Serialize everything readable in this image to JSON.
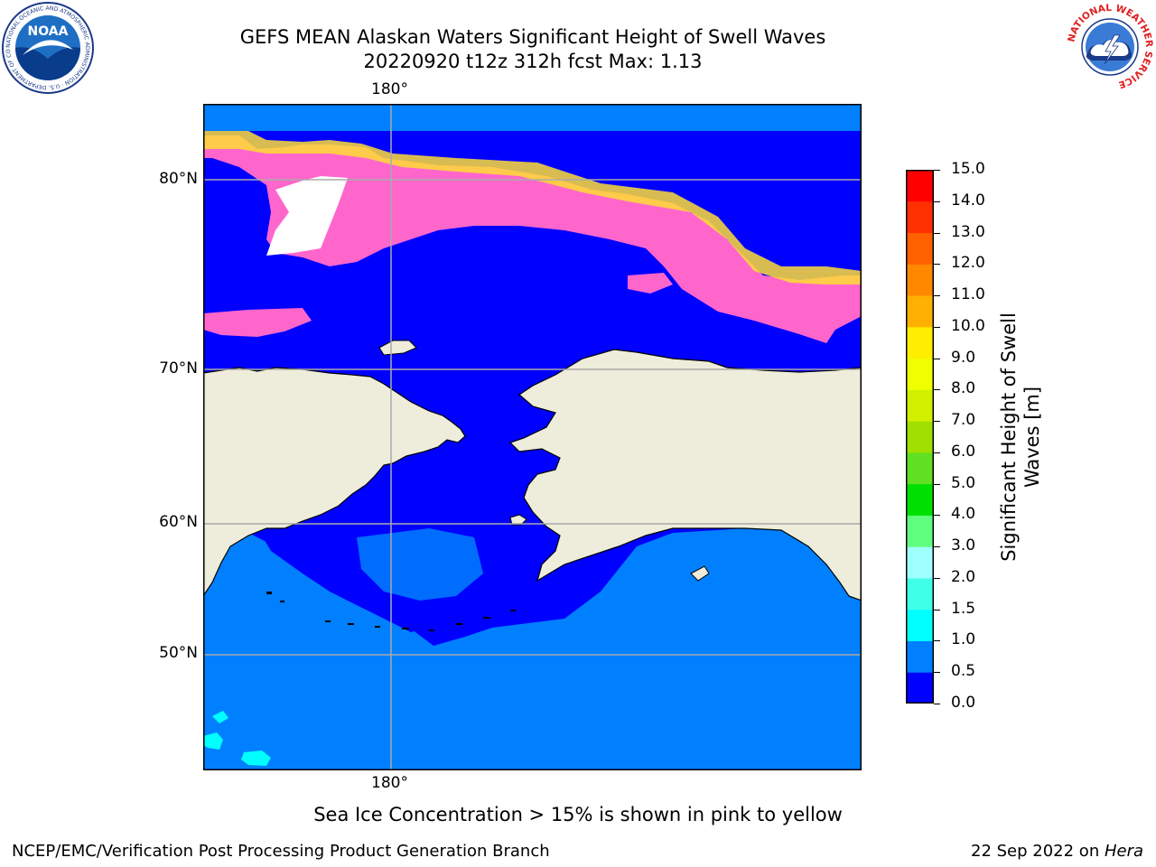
{
  "title": {
    "line1": "GEFS MEAN Alaskan Waters Significant Height of Swell Waves",
    "line2": "20220920 t12z 312h fcst   Max: 1.13"
  },
  "map": {
    "lon_label_top": "180°",
    "lon_label_bottom": "180°",
    "lat_labels": [
      "80°N",
      "70°N",
      "60°N",
      "50°N"
    ],
    "colors": {
      "land": "#eeeddc",
      "swell_0_05": "#0000ff",
      "swell_05_10": "#0080ff",
      "swell_10_15": "#00ffff",
      "ice": "#ff55cc",
      "ice_high": "#ffdd33"
    }
  },
  "colorbar": {
    "label": "Significant Height of Swell Waves [m]",
    "label_line1": "Significant Height of Swell",
    "label_line2": "Waves [m]",
    "ticks": [
      "0.0",
      "0.5",
      "1.0",
      "1.5",
      "2.0",
      "3.0",
      "4.0",
      "5.0",
      "6.0",
      "7.0",
      "8.0",
      "9.0",
      "10.0",
      "11.0",
      "12.0",
      "13.0",
      "14.0",
      "15.0"
    ],
    "colors": [
      "#0000ff",
      "#0080ff",
      "#00ffff",
      "#40ffe8",
      "#a0ffff",
      "#60ff80",
      "#00e000",
      "#60e020",
      "#a0e000",
      "#d0f000",
      "#f0ff00",
      "#ffee00",
      "#ffb000",
      "#ff8800",
      "#ff6000",
      "#ff3000",
      "#ff0000"
    ]
  },
  "note": "Sea Ice Concentration > 15% is shown in pink to yellow",
  "footer": {
    "left": "NCEP/EMC/Verification Post Processing Product Generation Branch",
    "right_prefix": "22 Sep 2022 on ",
    "right_host": "Hera"
  },
  "logos": {
    "noaa_text": "NOAA",
    "noaa_ring": "NATIONAL OCEANIC AND ATMOSPHERIC ADMINISTRATION · U.S. DEPARTMENT OF COMMERCE",
    "nws_ring": "NATIONAL WEATHER SERVICE"
  }
}
